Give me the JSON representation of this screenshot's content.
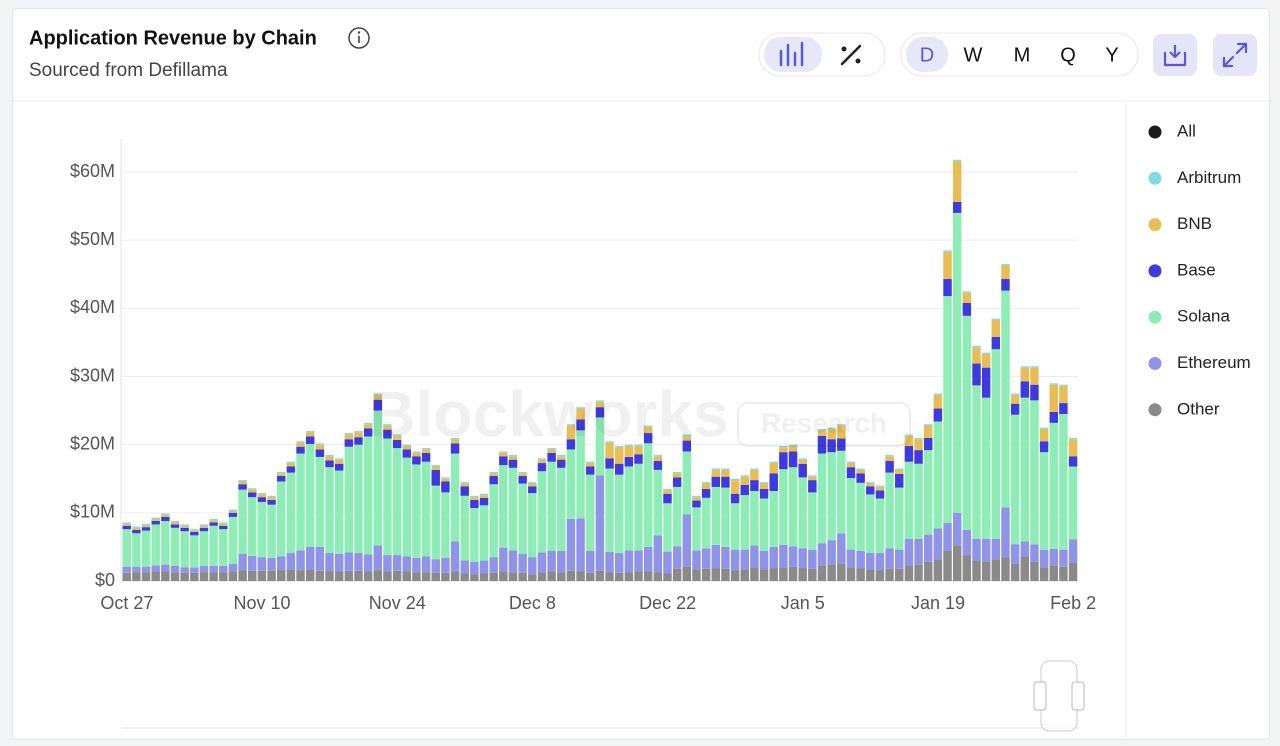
{
  "chart_data": {
    "type": "stacked-bar",
    "title": "Application Revenue by Chain",
    "subtitle": "Sourced from Defillama",
    "range_buttons": [
      "D",
      "W",
      "M",
      "Q",
      "Y"
    ],
    "watermark": "Blockworks",
    "watermark_badge": "Research",
    "legend_all": {
      "name": "All",
      "color": "#1a1a1a"
    },
    "categories": [
      "Oct 27",
      null,
      null,
      null,
      null,
      null,
      null,
      null,
      null,
      null,
      null,
      null,
      null,
      null,
      "Nov 10",
      null,
      null,
      null,
      null,
      null,
      null,
      null,
      null,
      null,
      null,
      null,
      null,
      null,
      "Nov 24",
      null,
      null,
      null,
      null,
      null,
      null,
      null,
      null,
      null,
      null,
      null,
      null,
      null,
      "Dec 8",
      null,
      null,
      null,
      null,
      null,
      null,
      null,
      null,
      null,
      null,
      null,
      null,
      null,
      "Dec 22",
      null,
      null,
      null,
      null,
      null,
      null,
      null,
      null,
      null,
      null,
      null,
      null,
      null,
      "Jan 5",
      null,
      null,
      null,
      null,
      null,
      null,
      null,
      null,
      null,
      null,
      null,
      null,
      null,
      "Jan 19",
      null,
      null,
      null,
      null,
      null,
      null,
      null,
      null,
      null,
      null,
      null,
      null,
      null,
      "Feb 2"
    ],
    "series": [
      {
        "name": "Arbitrum",
        "color": "#7fdbe4",
        "values": [
          0.2,
          0.2,
          0.2,
          0.2,
          0.2,
          0.2,
          0.2,
          0.2,
          0.2,
          0.2,
          0.2,
          0.2,
          0.2,
          0.2,
          0.2,
          0.2,
          0.2,
          0.2,
          0.2,
          0.2,
          0.2,
          0.2,
          0.2,
          0.2,
          0.2,
          0.2,
          0.2,
          0.2,
          0.2,
          0.2,
          0.2,
          0.2,
          0.2,
          0.2,
          0.2,
          0.2,
          0.2,
          0.2,
          0.2,
          0.2,
          0.2,
          0.2,
          0.2,
          0.2,
          0.2,
          0.2,
          0.2,
          0.2,
          0.2,
          0.2,
          0.2,
          0.2,
          0.2,
          0.2,
          0.2,
          0.2,
          0.2,
          0.2,
          0.2,
          0.2,
          0.2,
          0.2,
          0.2,
          0.2,
          0.2,
          0.2,
          0.2,
          0.2,
          0.2,
          0.2,
          0.2,
          0.2,
          0.2,
          0.2,
          0.2,
          0.2,
          0.2,
          0.2,
          0.2,
          0.2,
          0.2,
          0.2,
          0.2,
          0.2,
          0.2,
          0.2,
          0.2,
          0.2,
          0.2,
          0.2,
          0.2,
          0.2,
          0.2,
          0.2,
          0.2,
          0.2,
          0.2,
          0.2,
          0.2
        ]
      },
      {
        "name": "BNB",
        "color": "#e8bd55",
        "values": [
          0.3,
          0.3,
          0.3,
          0.3,
          0.3,
          0.3,
          0.3,
          0.2,
          0.3,
          0.3,
          0.3,
          0.3,
          0.4,
          0.4,
          0.4,
          0.4,
          0.4,
          0.5,
          0.6,
          0.6,
          0.7,
          0.6,
          0.6,
          0.7,
          0.7,
          0.6,
          0.7,
          0.6,
          0.6,
          0.5,
          0.5,
          0.5,
          0.5,
          0.4,
          0.6,
          0.4,
          0.4,
          0.4,
          0.4,
          0.5,
          0.5,
          0.4,
          0.4,
          0.5,
          0.5,
          0.5,
          2.0,
          1.6,
          0.5,
          0.8,
          2.3,
          2.4,
          1.6,
          1.2,
          0.9,
          0.7,
          0.5,
          0.6,
          0.7,
          0.5,
          0.8,
          1.0,
          1.0,
          2.0,
          1.2,
          1.5,
          0.8,
          1.5,
          0.7,
          0.8,
          0.6,
          0.5,
          0.8,
          1.5,
          1.9,
          0.6,
          0.5,
          0.4,
          0.5,
          0.7,
          0.6,
          1.5,
          1.6,
          1.8,
          2.0,
          4.0,
          6.0,
          1.5,
          2.4,
          2.0,
          2.5,
          2.0,
          1.3,
          2.0,
          2.5,
          1.8,
          4.0,
          2.5,
          2.5
        ]
      },
      {
        "name": "Base",
        "color": "#3f3ade",
        "values": [
          0.5,
          0.5,
          0.5,
          0.5,
          0.6,
          0.5,
          0.5,
          0.5,
          0.5,
          0.5,
          0.5,
          0.6,
          0.8,
          0.7,
          0.7,
          0.7,
          0.8,
          0.9,
          1.0,
          1.1,
          1.1,
          1.0,
          1.0,
          1.1,
          1.1,
          1.2,
          1.6,
          1.3,
          1.2,
          1.2,
          1.2,
          1.3,
          2.3,
          1.6,
          1.5,
          1.4,
          1.2,
          1.1,
          1.2,
          1.3,
          1.2,
          1.1,
          1.0,
          1.2,
          1.3,
          1.2,
          1.5,
          1.6,
          1.2,
          1.5,
          1.5,
          1.6,
          1.4,
          1.4,
          1.5,
          1.3,
          1.4,
          1.4,
          1.6,
          1.0,
          1.3,
          1.5,
          1.6,
          1.4,
          1.5,
          1.6,
          1.4,
          2.6,
          2.5,
          2.3,
          2.0,
          1.8,
          2.6,
          1.9,
          1.8,
          1.6,
          1.4,
          1.2,
          1.2,
          1.7,
          2.0,
          2.3,
          2.0,
          1.8,
          1.9,
          2.5,
          1.6,
          1.9,
          3.2,
          4.4,
          1.8,
          1.7,
          1.6,
          2.4,
          2.3,
          1.6,
          1.6,
          1.6,
          1.5
        ]
      },
      {
        "name": "Solana",
        "color": "#8eedb6",
        "values": [
          5.5,
          4.9,
          5.3,
          6.0,
          6.4,
          5.6,
          5.3,
          4.7,
          5.1,
          5.9,
          5.4,
          6.9,
          9.4,
          8.6,
          8.1,
          7.8,
          11.0,
          11.8,
          14.2,
          15.1,
          13.2,
          12.6,
          12.2,
          15.5,
          15.9,
          17.3,
          19.8,
          17.1,
          15.7,
          14.5,
          13.7,
          13.9,
          10.8,
          9.6,
          12.9,
          9.5,
          7.9,
          8.1,
          10.7,
          12.1,
          12.1,
          10.3,
          9.4,
          11.9,
          13.1,
          12.2,
          10.2,
          12.9,
          11.2,
          8.5,
          12.2,
          11.5,
          12.3,
          12.7,
          15.2,
          9.6,
          7.1,
          8.7,
          9.2,
          6.3,
          7.4,
          8.5,
          8.7,
          6.8,
          8.0,
          8.0,
          7.7,
          8.2,
          11.1,
          11.6,
          10.4,
          8.4,
          13.2,
          12.9,
          12.1,
          10.5,
          10.0,
          8.6,
          8.0,
          11.1,
          9.1,
          11.3,
          11.0,
          12.4,
          15.7,
          33.3,
          44.0,
          31.4,
          22.5,
          20.7,
          27.8,
          31.8,
          19.0,
          21.1,
          21.1,
          14.3,
          18.5,
          19.9,
          10.7
        ]
      },
      {
        "name": "Ethereum",
        "color": "#8f94e8",
        "values": [
          0.9,
          0.8,
          0.8,
          0.9,
          1.0,
          0.9,
          0.8,
          0.8,
          0.9,
          0.9,
          0.9,
          1.1,
          2.4,
          2.2,
          2.0,
          1.9,
          2.0,
          2.4,
          2.9,
          3.3,
          3.5,
          2.7,
          2.6,
          2.7,
          2.6,
          2.5,
          3.6,
          2.4,
          2.3,
          2.2,
          2.1,
          2.3,
          2.0,
          2.2,
          4.4,
          1.9,
          1.8,
          1.9,
          2.3,
          3.5,
          3.2,
          2.8,
          2.5,
          2.9,
          3.0,
          3.1,
          7.6,
          7.8,
          3.2,
          14.0,
          3.0,
          2.9,
          3.2,
          3.1,
          3.6,
          5.4,
          3.2,
          3.3,
          7.7,
          2.8,
          3.0,
          3.4,
          3.2,
          3.0,
          2.9,
          3.2,
          2.7,
          3.1,
          3.3,
          3.0,
          2.9,
          2.8,
          3.2,
          3.6,
          4.5,
          2.6,
          2.5,
          2.4,
          2.5,
          3.0,
          2.8,
          4.0,
          3.8,
          4.0,
          4.5,
          4.0,
          4.8,
          3.7,
          3.2,
          3.3,
          3.0,
          7.3,
          2.9,
          2.2,
          2.6,
          2.6,
          2.4,
          2.5,
          3.4
        ]
      },
      {
        "name": "Other",
        "color": "#8a8a8a",
        "values": [
          1.2,
          1.3,
          1.3,
          1.4,
          1.4,
          1.3,
          1.2,
          1.2,
          1.3,
          1.3,
          1.3,
          1.4,
          1.6,
          1.5,
          1.5,
          1.5,
          1.6,
          1.7,
          1.6,
          1.7,
          1.5,
          1.4,
          1.4,
          1.5,
          1.5,
          1.4,
          1.6,
          1.4,
          1.5,
          1.4,
          1.3,
          1.3,
          1.2,
          1.2,
          1.4,
          1.1,
          1.0,
          1.1,
          1.2,
          1.4,
          1.3,
          1.2,
          1.0,
          1.3,
          1.4,
          1.3,
          1.5,
          1.4,
          1.2,
          1.5,
          1.3,
          1.2,
          1.3,
          1.4,
          1.4,
          1.3,
          1.1,
          1.8,
          2.1,
          1.7,
          1.8,
          1.9,
          1.8,
          1.6,
          1.7,
          2.0,
          1.7,
          1.9,
          2.0,
          2.1,
          1.9,
          1.8,
          2.3,
          2.4,
          2.5,
          2.0,
          1.9,
          1.7,
          1.6,
          1.8,
          1.8,
          2.2,
          2.4,
          2.8,
          3.2,
          4.5,
          5.2,
          3.8,
          3.0,
          2.9,
          3.2,
          3.5,
          2.5,
          3.6,
          2.8,
          2.0,
          2.3,
          2.1,
          2.7
        ]
      }
    ],
    "ylim": [
      0,
      65
    ],
    "yticks": [
      {
        "value": 0,
        "label": "$0"
      },
      {
        "value": 10,
        "label": "$10M"
      },
      {
        "value": 20,
        "label": "$20M"
      },
      {
        "value": 30,
        "label": "$30M"
      },
      {
        "value": 40,
        "label": "$40M"
      },
      {
        "value": 50,
        "label": "$50M"
      },
      {
        "value": 60,
        "label": "$60M"
      }
    ],
    "grid": true
  }
}
